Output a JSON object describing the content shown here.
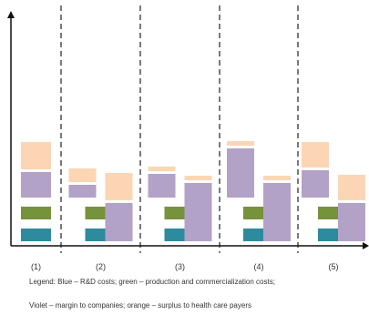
{
  "chart_data": {
    "type": "bar",
    "groups": [
      "(1)",
      "(2)",
      "(3)",
      "(4)",
      "(5)"
    ],
    "bar_count_per_group": [
      1,
      2,
      2,
      2,
      2
    ],
    "note": "Stacked cost components per scenario; y-axis unlabeled (no ticks or scale shown).",
    "series": [
      {
        "name": "R&D costs",
        "color": "#2e8b9e",
        "values": [
          [
            14
          ],
          [
            14,
            null
          ],
          [
            14,
            null
          ],
          [
            14,
            null
          ],
          [
            14,
            null
          ]
        ]
      },
      {
        "name": "production and commercialization costs",
        "color": "#76923c",
        "values": [
          [
            14
          ],
          [
            14,
            null
          ],
          [
            14,
            null
          ],
          [
            14,
            null
          ],
          [
            14,
            null
          ]
        ]
      },
      {
        "name": "margin to companies",
        "color": "#b3a2c7",
        "values": [
          [
            28
          ],
          [
            14,
            42
          ],
          [
            26,
            64
          ],
          [
            54,
            64
          ],
          [
            30,
            42
          ]
        ]
      },
      {
        "name": "surplus to health care payers",
        "color": "#fcd5b5",
        "values": [
          [
            30
          ],
          [
            15,
            30
          ],
          [
            5,
            5
          ],
          [
            5,
            5
          ],
          [
            28,
            28
          ]
        ]
      }
    ],
    "legend": [
      "Legend: Blue – R&D costs; green – production and commercialization costs;",
      "Violet – margin to companies; orange – surplus to health care payers"
    ]
  }
}
